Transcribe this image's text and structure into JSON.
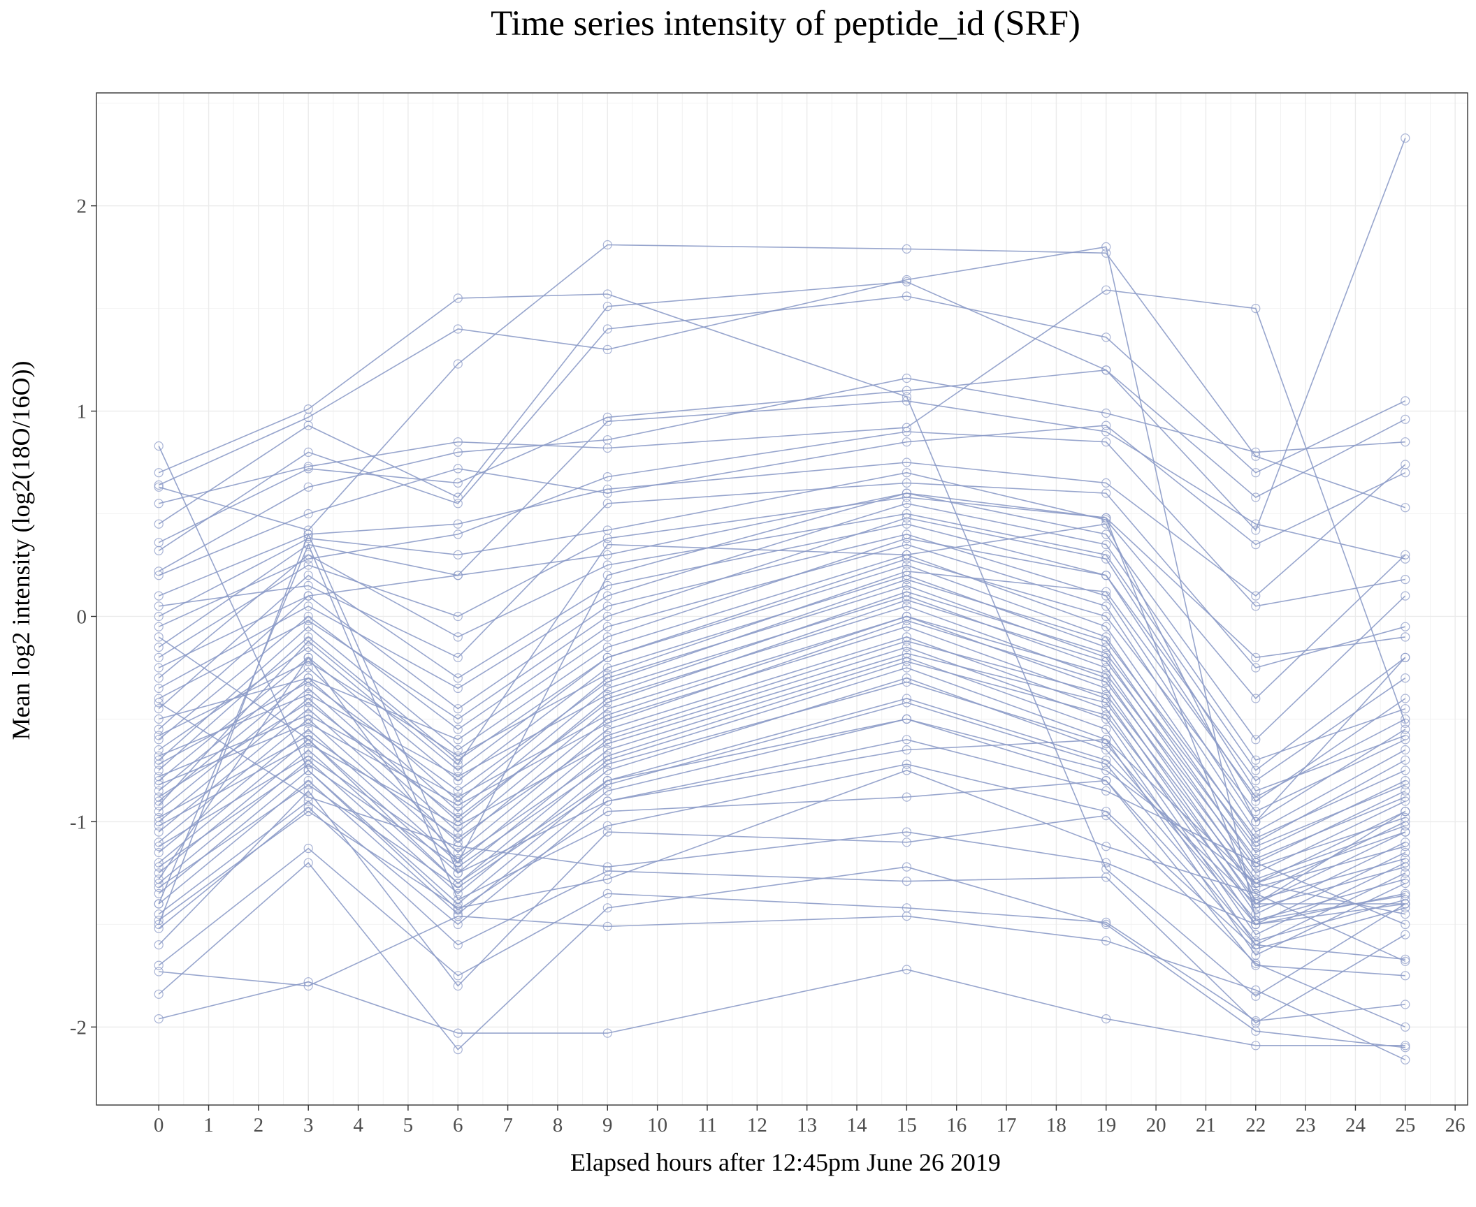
{
  "chart_data": {
    "type": "line",
    "title": "Time series intensity of peptide_id (SRF)",
    "xlabel": "Elapsed hours after 12:45pm June 26 2019",
    "ylabel": "Mean log2 intensity (log2(18O/16O))",
    "x": [
      0,
      3,
      6,
      9,
      15,
      19,
      22,
      25
    ],
    "xlim": [
      -1.25,
      26.25
    ],
    "ylim": [
      -2.38,
      2.55
    ],
    "x_ticks": [
      0,
      1,
      2,
      3,
      4,
      5,
      6,
      7,
      8,
      9,
      10,
      11,
      12,
      13,
      14,
      15,
      16,
      17,
      18,
      19,
      20,
      21,
      22,
      23,
      24,
      25,
      26
    ],
    "y_ticks": [
      -2,
      -1,
      0,
      1,
      2
    ],
    "x_tick_labels": [
      "0",
      "1",
      "2",
      "3",
      "4",
      "5",
      "6",
      "7",
      "8",
      "9",
      "10",
      "11",
      "12",
      "13",
      "14",
      "15",
      "16",
      "17",
      "18",
      "19",
      "20",
      "21",
      "22",
      "23",
      "24",
      "25",
      "26"
    ],
    "y_tick_labels": [
      "-2",
      "-1",
      "0",
      "1",
      "2"
    ],
    "grid": true,
    "legend": false,
    "color": "#8c9bc8",
    "series": [
      {
        "values": [
          -1.96,
          -1.78,
          -2.03,
          -2.03,
          -1.72,
          -1.96,
          -2.09,
          -2.09
        ]
      },
      {
        "values": [
          -1.73,
          -1.8,
          -1.46,
          -1.51,
          -1.46,
          -1.58,
          -1.82,
          -2.16
        ]
      },
      {
        "values": [
          -1.84,
          -1.2,
          -2.11,
          -1.42,
          -1.22,
          -1.5,
          -2.02,
          -2.1
        ]
      },
      {
        "values": [
          -1.7,
          -1.13,
          -1.75,
          -1.35,
          -1.42,
          -1.49,
          -1.97,
          -1.89
        ]
      },
      {
        "values": [
          -1.52,
          -0.93,
          -1.6,
          -1.24,
          -1.29,
          -1.27,
          -1.98,
          -1.55
        ]
      },
      {
        "values": [
          -1.6,
          -0.85,
          -1.8,
          -1.05,
          -1.1,
          -0.97,
          -1.69,
          -2.0
        ]
      },
      {
        "values": [
          0.83,
          -0.75,
          -1.43,
          -0.95,
          -0.88,
          -0.8,
          -1.6,
          -1.67
        ]
      },
      {
        "values": [
          0.7,
          1.01,
          1.55,
          1.57,
          1.07,
          -1.23,
          -1.85,
          -1.4
        ]
      },
      {
        "values": [
          0.63,
          0.42,
          1.23,
          1.81,
          1.79,
          1.77,
          0.78,
          0.53
        ]
      },
      {
        "values": [
          0.64,
          0.97,
          1.4,
          1.3,
          1.64,
          1.8,
          -1.48,
          -1.36
        ]
      },
      {
        "values": [
          0.55,
          0.73,
          0.85,
          0.82,
          0.92,
          1.59,
          1.5,
          -0.52
        ]
      },
      {
        "values": [
          0.45,
          0.93,
          0.58,
          1.51,
          1.63,
          1.2,
          0.42,
          2.33
        ]
      },
      {
        "values": [
          0.32,
          0.8,
          0.55,
          1.4,
          1.56,
          1.36,
          0.7,
          1.05
        ]
      },
      {
        "values": [
          0.36,
          0.72,
          0.65,
          0.97,
          1.1,
          1.2,
          0.58,
          0.96
        ]
      },
      {
        "values": [
          0.22,
          0.63,
          0.8,
          0.86,
          1.16,
          0.99,
          0.8,
          0.85
        ]
      },
      {
        "values": [
          0.2,
          0.5,
          0.72,
          0.6,
          0.85,
          0.93,
          0.35,
          0.7
        ]
      },
      {
        "values": [
          0.1,
          0.4,
          0.45,
          0.62,
          0.75,
          0.65,
          0.1,
          0.74
        ]
      },
      {
        "values": [
          0.0,
          0.38,
          0.3,
          0.42,
          0.7,
          0.47,
          -0.4,
          0.3
        ]
      },
      {
        "values": [
          -0.15,
          0.35,
          0.2,
          0.3,
          0.6,
          0.4,
          -0.6,
          0.1
        ]
      },
      {
        "values": [
          -0.3,
          0.3,
          -0.1,
          0.25,
          0.5,
          0.3,
          -0.75,
          -0.2
        ]
      },
      {
        "values": [
          -0.45,
          0.2,
          -0.3,
          0.15,
          0.45,
          0.2,
          -0.9,
          -0.4
        ]
      },
      {
        "values": [
          -0.55,
          0.1,
          -0.45,
          0.05,
          0.4,
          0.1,
          -1.0,
          -0.55
        ]
      },
      {
        "values": [
          -0.6,
          0.0,
          -0.55,
          -0.05,
          0.35,
          0.05,
          -1.05,
          -0.65
        ]
      },
      {
        "values": [
          -0.7,
          -0.05,
          -0.65,
          -0.15,
          0.3,
          -0.05,
          -1.1,
          -0.7
        ]
      },
      {
        "values": [
          -0.75,
          -0.1,
          -0.7,
          -0.2,
          0.25,
          -0.1,
          -1.15,
          -0.8
        ]
      },
      {
        "values": [
          -0.8,
          -0.2,
          -0.8,
          -0.25,
          0.2,
          -0.15,
          -1.2,
          -0.85
        ]
      },
      {
        "values": [
          -0.85,
          -0.25,
          -0.9,
          -0.3,
          0.15,
          -0.2,
          -1.25,
          -0.9
        ]
      },
      {
        "values": [
          -0.9,
          -0.3,
          -0.95,
          -0.35,
          0.1,
          -0.25,
          -1.3,
          -0.95
        ]
      },
      {
        "values": [
          -0.95,
          -0.35,
          -1.0,
          -0.4,
          0.05,
          -0.3,
          -1.35,
          -1.0
        ]
      },
      {
        "values": [
          -1.0,
          -0.4,
          -1.05,
          -0.45,
          0.0,
          -0.35,
          -1.4,
          -1.05
        ]
      },
      {
        "values": [
          -1.05,
          -0.45,
          -1.1,
          -0.5,
          -0.05,
          -0.4,
          -1.45,
          -1.1
        ]
      },
      {
        "values": [
          -1.1,
          -0.5,
          -1.15,
          -0.55,
          -0.1,
          -0.45,
          -1.5,
          -1.15
        ]
      },
      {
        "values": [
          -1.15,
          -0.55,
          -1.2,
          -0.6,
          -0.15,
          -0.5,
          -1.55,
          -1.2
        ]
      },
      {
        "values": [
          -1.2,
          -0.6,
          -1.25,
          -0.65,
          -0.2,
          -0.55,
          -1.6,
          -1.25
        ]
      },
      {
        "values": [
          -1.25,
          -0.65,
          -1.3,
          -0.7,
          -0.25,
          -0.6,
          -1.65,
          -1.3
        ]
      },
      {
        "values": [
          -1.3,
          -0.7,
          -1.35,
          -0.75,
          -0.3,
          -0.65,
          -1.5,
          -1.35
        ]
      },
      {
        "values": [
          -1.35,
          -0.75,
          -1.4,
          -0.8,
          -0.4,
          -0.7,
          -1.4,
          -1.4
        ]
      },
      {
        "values": [
          -1.4,
          -0.8,
          -1.45,
          -0.85,
          -0.5,
          -0.75,
          -1.3,
          -1.45
        ]
      },
      {
        "values": [
          -1.45,
          -0.9,
          -1.5,
          -0.9,
          -0.6,
          -0.85,
          -1.2,
          -1.5
        ]
      },
      {
        "values": [
          -0.5,
          -0.3,
          -0.6,
          -0.1,
          0.38,
          0.2,
          -0.8,
          -0.3
        ]
      },
      {
        "values": [
          -0.65,
          -0.15,
          -0.75,
          -0.2,
          0.28,
          0.0,
          -0.95,
          -0.6
        ]
      },
      {
        "values": [
          -0.72,
          -0.32,
          -0.85,
          -0.32,
          0.18,
          -0.12,
          -1.08,
          -0.75
        ]
      },
      {
        "values": [
          -0.88,
          -0.42,
          -0.98,
          -0.42,
          0.08,
          -0.22,
          -1.18,
          -0.88
        ]
      },
      {
        "values": [
          -0.58,
          -0.22,
          -0.68,
          -0.28,
          0.22,
          0.12,
          -0.88,
          -0.5
        ]
      },
      {
        "values": [
          -0.78,
          -0.48,
          -0.88,
          -0.48,
          0.0,
          -0.28,
          -1.22,
          -0.98
        ]
      },
      {
        "values": [
          -0.98,
          -0.58,
          -1.08,
          -0.58,
          -0.12,
          -0.38,
          -1.32,
          -1.12
        ]
      },
      {
        "values": [
          -1.12,
          -0.68,
          -1.18,
          -0.68,
          -0.22,
          -0.48,
          -1.42,
          -1.22
        ]
      },
      {
        "values": [
          -0.35,
          0.05,
          -0.35,
          0.1,
          0.55,
          0.35,
          -0.7,
          -0.45
        ]
      },
      {
        "values": [
          -0.4,
          -0.02,
          -0.5,
          0.0,
          0.48,
          0.28,
          -0.85,
          -0.58
        ]
      },
      {
        "values": [
          -0.68,
          -0.38,
          -0.78,
          -0.38,
          0.12,
          -0.18,
          -1.12,
          -0.82
        ]
      },
      {
        "values": [
          -0.82,
          -0.52,
          -0.92,
          -0.52,
          -0.02,
          -0.32,
          -1.28,
          -1.02
        ]
      },
      {
        "values": [
          -1.02,
          -0.62,
          -1.02,
          -0.62,
          -0.18,
          -0.42,
          -1.38,
          -1.18
        ]
      },
      {
        "values": [
          -1.22,
          -0.72,
          -1.22,
          -0.72,
          -0.32,
          -0.62,
          -1.48,
          -1.28
        ]
      },
      {
        "values": [
          -1.32,
          -0.82,
          -1.32,
          -0.82,
          -0.42,
          -0.72,
          -1.58,
          -1.38
        ]
      },
      {
        "values": [
          -0.92,
          -0.12,
          -0.72,
          0.35,
          0.3,
          0.45,
          -1.0,
          -0.2
        ]
      },
      {
        "values": [
          -1.28,
          -0.2,
          -1.2,
          0.2,
          0.6,
          0.48,
          -1.4,
          -0.95
        ]
      },
      {
        "values": [
          -0.2,
          0.25,
          0.0,
          0.38,
          0.58,
          0.48,
          -0.2,
          -0.1
        ]
      },
      {
        "values": [
          -1.5,
          0.4,
          -1.25,
          -0.9,
          -0.65,
          -0.6,
          -1.3,
          -1.05
        ]
      },
      {
        "values": [
          -1.4,
          0.35,
          -1.38,
          -1.02,
          -0.72,
          -0.95,
          -1.62,
          -1.42
        ]
      },
      {
        "values": [
          -0.1,
          -0.6,
          -1.3,
          -0.8,
          -0.5,
          -0.8,
          -1.7,
          -1.75
        ]
      },
      {
        "values": [
          -0.42,
          -0.88,
          -1.12,
          -1.22,
          -1.05,
          -1.2,
          -1.5,
          -1.4
        ]
      },
      {
        "values": [
          -1.48,
          -0.95,
          -1.42,
          -1.28,
          -0.75,
          -1.12,
          -1.35,
          -1.68
        ]
      },
      {
        "values": [
          -0.25,
          0.1,
          0.2,
          0.95,
          1.05,
          0.9,
          0.45,
          0.28
        ]
      },
      {
        "values": [
          -0.05,
          0.28,
          0.4,
          0.68,
          0.9,
          0.85,
          0.05,
          0.18
        ]
      },
      {
        "values": [
          0.05,
          0.15,
          -0.2,
          0.55,
          0.65,
          0.6,
          -0.25,
          -0.05
        ]
      }
    ]
  }
}
